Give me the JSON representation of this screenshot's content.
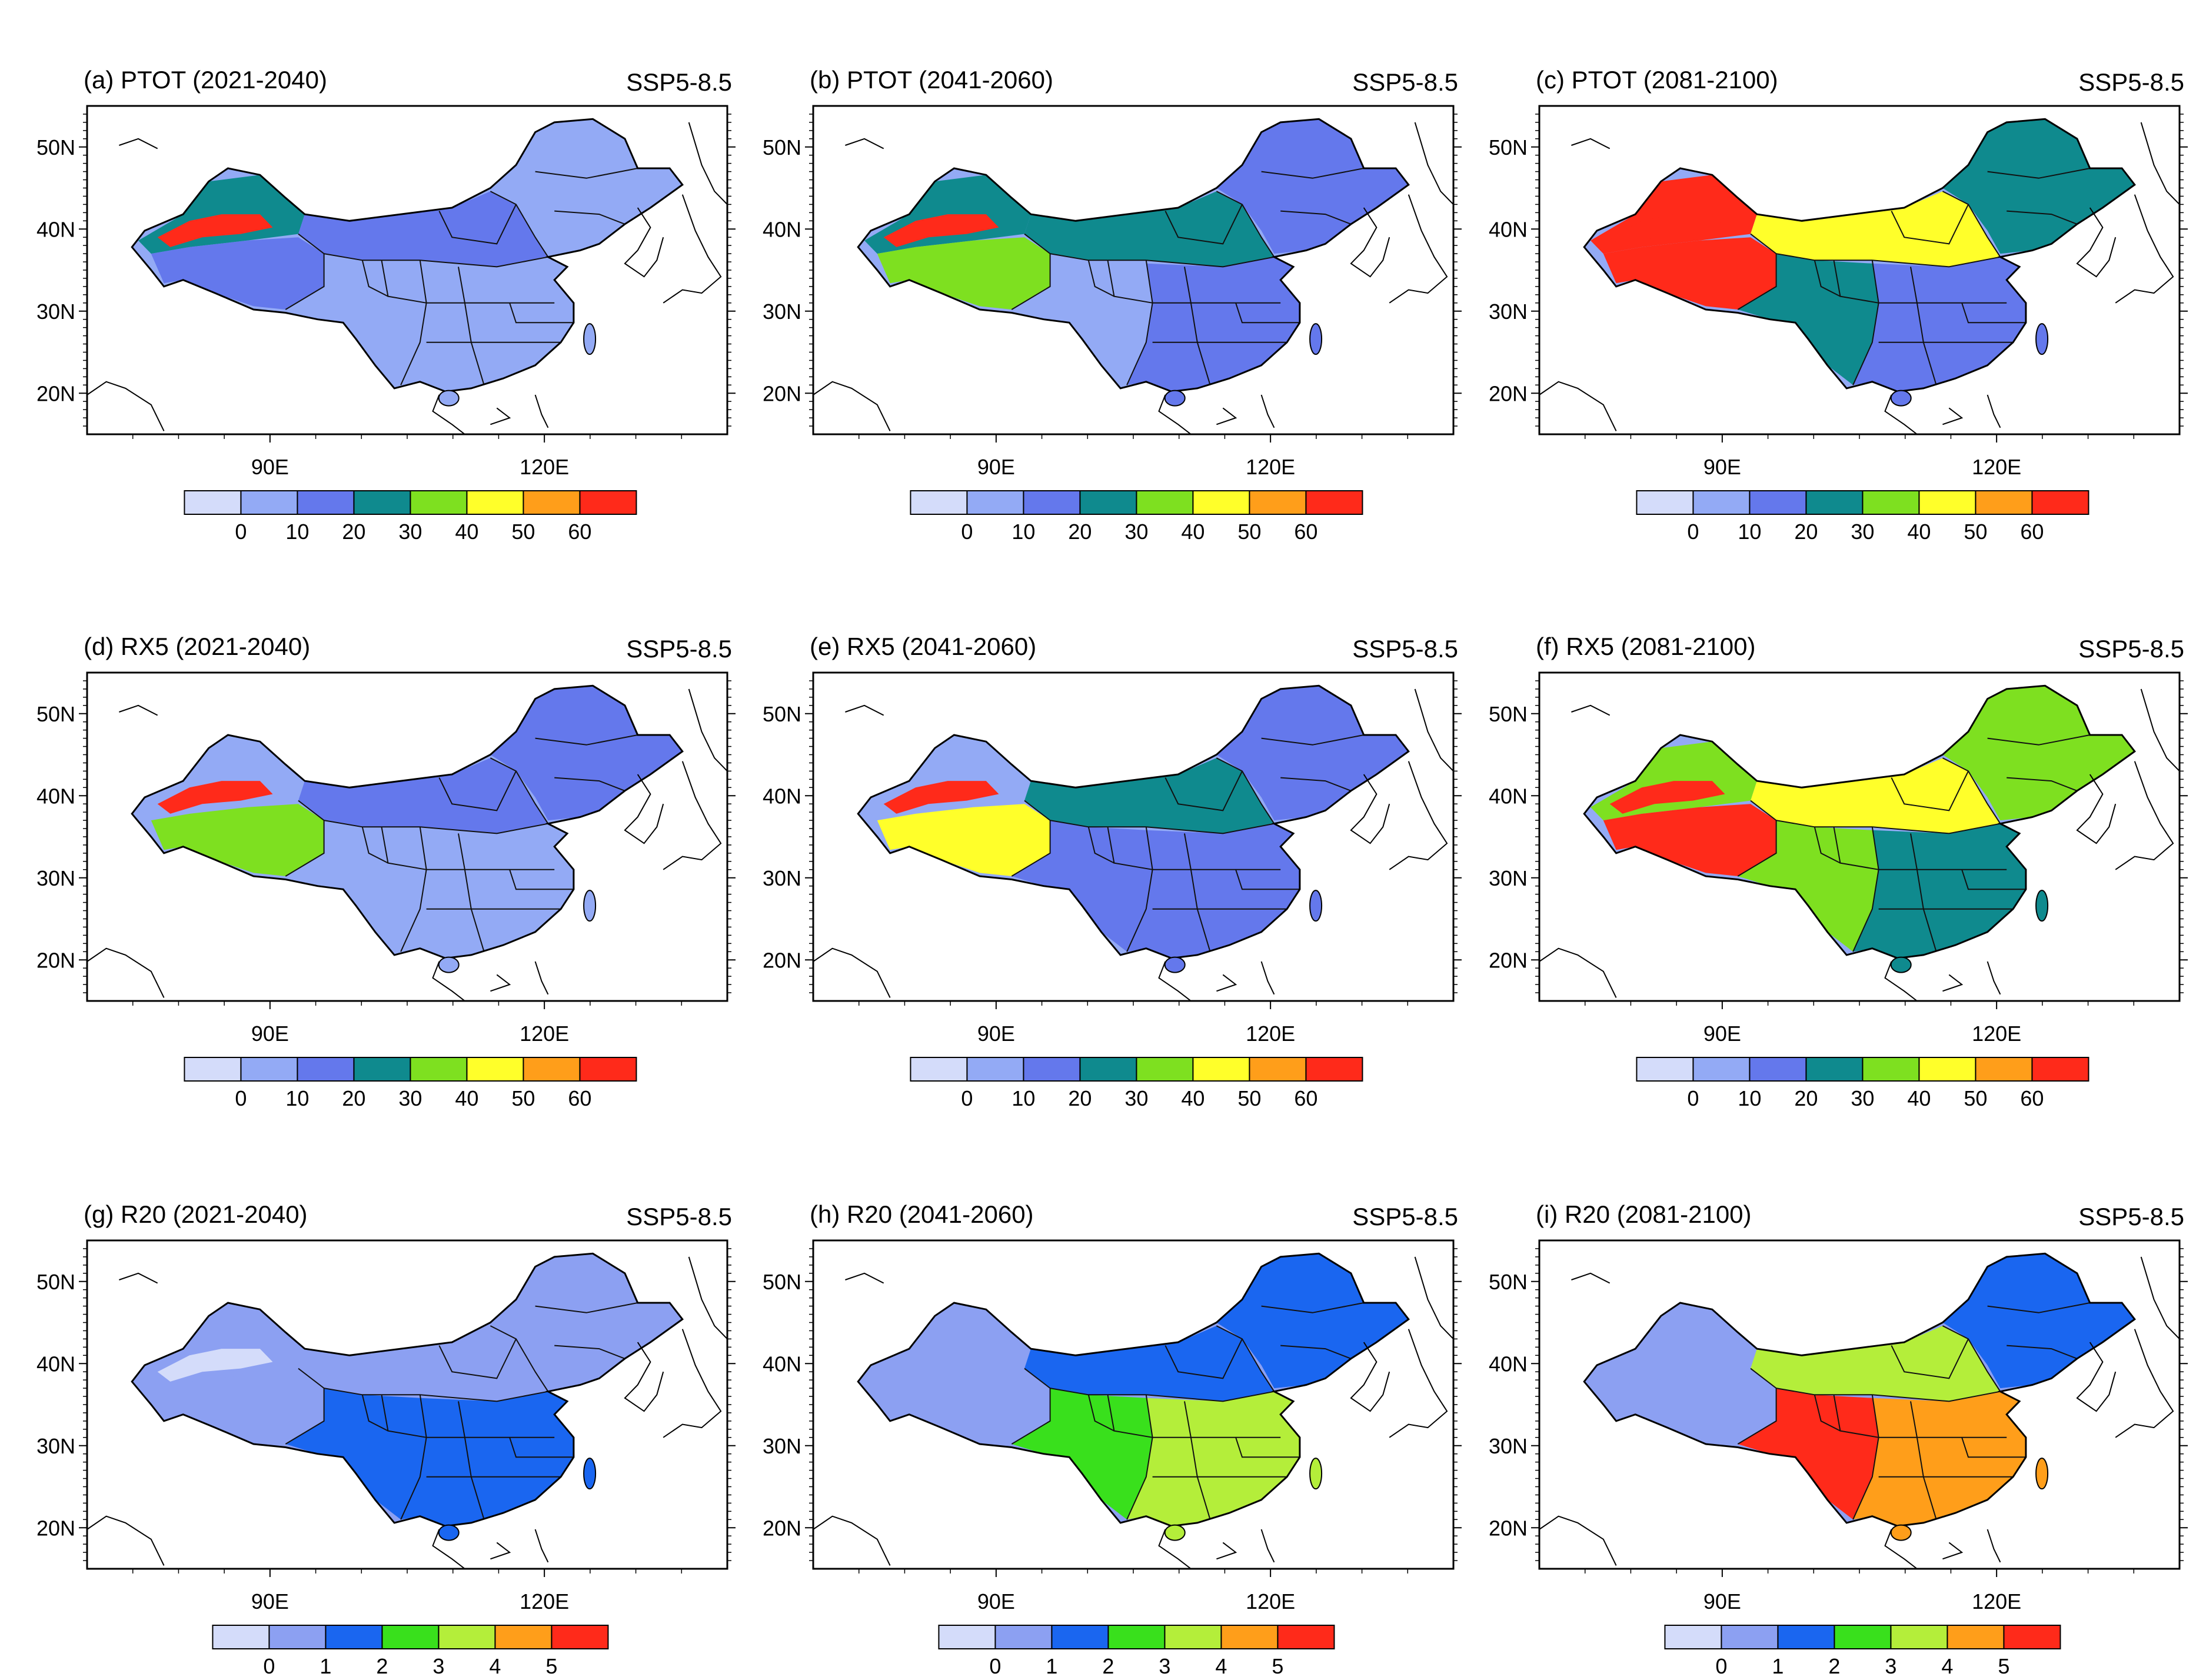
{
  "figure": {
    "scenario": "SSP5-8.5",
    "lat_ticks": [
      "50N",
      "40N",
      "30N",
      "20N"
    ],
    "lat_values": [
      50,
      40,
      30,
      20
    ],
    "lon_ticks": [
      "90E",
      "120E"
    ],
    "lon_values": [
      90,
      120
    ],
    "extent": {
      "lon_min": 70,
      "lon_max": 140,
      "lat_min": 15,
      "lat_max": 55
    }
  },
  "colorbars": {
    "percent": {
      "labels": [
        "0",
        "10",
        "20",
        "30",
        "40",
        "50",
        "60"
      ],
      "colors": [
        "#d4dcfa",
        "#93aaf5",
        "#6478ec",
        "#0f8a8e",
        "#7ee020",
        "#ffff2a",
        "#ff9e1a",
        "#ff2a1a"
      ]
    },
    "days": {
      "labels": [
        "0",
        "1",
        "2",
        "3",
        "4",
        "5"
      ],
      "colors": [
        "#d4dcfa",
        "#8ca0f2",
        "#1a66f0",
        "#39e01c",
        "#b4ee3a",
        "#ff9e1a",
        "#ff2a1a"
      ]
    }
  },
  "panels": [
    {
      "title": "(a) PTOT (2021-2040)",
      "index": "PTOT",
      "period": "2021-2040",
      "colorbar": "percent",
      "regions": {
        "west": 3,
        "north": 2,
        "northeast": 1,
        "southeast": 1,
        "southwest": 1,
        "tibet": 2,
        "lake": 7
      }
    },
    {
      "title": "(b) PTOT (2041-2060)",
      "index": "PTOT",
      "period": "2041-2060",
      "colorbar": "percent",
      "regions": {
        "west": 3,
        "north": 3,
        "northeast": 2,
        "southeast": 2,
        "southwest": 1,
        "tibet": 4,
        "lake": 7
      }
    },
    {
      "title": "(c) PTOT (2081-2100)",
      "index": "PTOT",
      "period": "2081-2100",
      "colorbar": "percent",
      "regions": {
        "west": 7,
        "north": 5,
        "northeast": 3,
        "southeast": 2,
        "southwest": 3,
        "tibet": 7,
        "lake": 7
      }
    },
    {
      "title": "(d) RX5 (2021-2040)",
      "index": "RX5",
      "period": "2021-2040",
      "colorbar": "percent",
      "regions": {
        "west": 1,
        "north": 2,
        "northeast": 2,
        "southeast": 1,
        "southwest": 1,
        "tibet": 4,
        "lake": 7
      }
    },
    {
      "title": "(e) RX5 (2041-2060)",
      "index": "RX5",
      "period": "2041-2060",
      "colorbar": "percent",
      "regions": {
        "west": 1,
        "north": 3,
        "northeast": 2,
        "southeast": 2,
        "southwest": 2,
        "tibet": 5,
        "lake": 7
      }
    },
    {
      "title": "(f) RX5 (2081-2100)",
      "index": "RX5",
      "period": "2081-2100",
      "colorbar": "percent",
      "regions": {
        "west": 4,
        "north": 5,
        "northeast": 4,
        "southeast": 3,
        "southwest": 4,
        "tibet": 7,
        "lake": 7
      }
    },
    {
      "title": "(g) R20 (2021-2040)",
      "index": "R20",
      "period": "2021-2040",
      "colorbar": "days",
      "regions": {
        "west": 1,
        "north": 1,
        "northeast": 1,
        "southeast": 2,
        "southwest": 2,
        "tibet": 1,
        "lake": 0
      }
    },
    {
      "title": "(h) R20 (2041-2060)",
      "index": "R20",
      "period": "2041-2060",
      "colorbar": "days",
      "regions": {
        "west": 1,
        "north": 2,
        "northeast": 2,
        "southeast": 4,
        "southwest": 3,
        "tibet": 1,
        "lake": 1
      }
    },
    {
      "title": "(i) R20 (2081-2100)",
      "index": "R20",
      "period": "2081-2100",
      "colorbar": "days",
      "regions": {
        "west": 1,
        "north": 4,
        "northeast": 2,
        "southeast": 5,
        "southwest": 6,
        "tibet": 1,
        "lake": 1
      }
    }
  ]
}
